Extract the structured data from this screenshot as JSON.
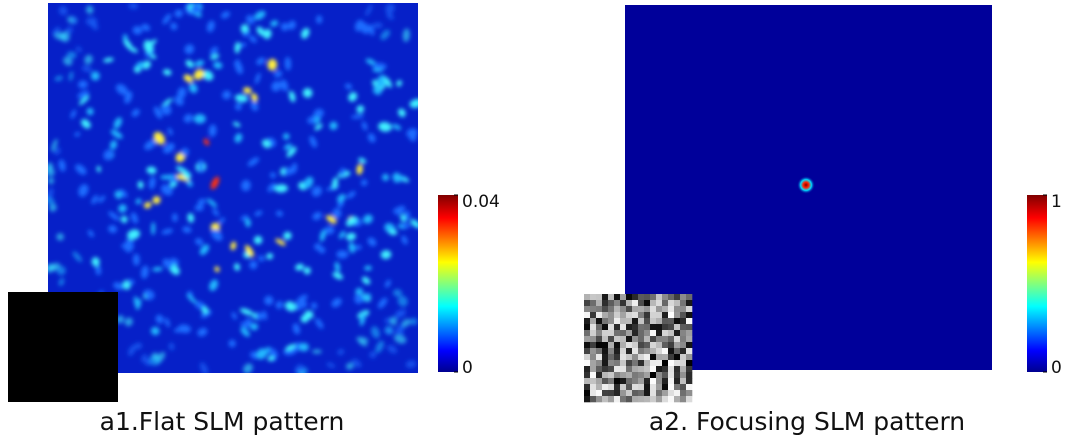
{
  "panels": [
    {
      "caption": "a1.Flat SLM pattern",
      "colorbar": {
        "lim": [
          0,
          0.04
        ],
        "ticks": [
          0,
          0.04
        ]
      }
    },
    {
      "caption": "a2. Focusing SLM pattern",
      "colorbar": {
        "lim": [
          0,
          1
        ],
        "ticks": [
          0,
          1
        ]
      }
    }
  ]
}
